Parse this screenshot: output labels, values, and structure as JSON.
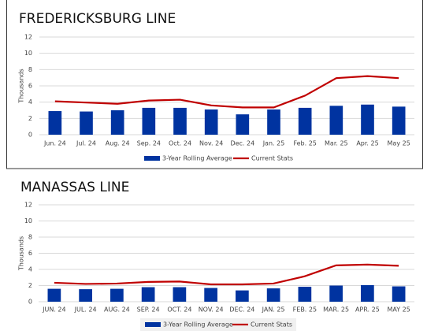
{
  "chart_data": [
    {
      "type": "combo",
      "title": "FREDERICKSBURG LINE",
      "y_label": "Thousands",
      "categories": [
        "Jun. 24",
        "Jul. 24",
        "Aug. 24",
        "Sep. 24",
        "Oct. 24",
        "Nov. 24",
        "Dec. 24",
        "Jan. 25",
        "Feb. 25",
        "Mar. 25",
        "Apr. 25",
        "May 25"
      ],
      "series": [
        {
          "name": "3-Year Rolling Average",
          "type": "bar",
          "color": "#0033a0",
          "values": [
            2.9,
            2.85,
            3.0,
            3.3,
            3.3,
            3.1,
            2.5,
            3.1,
            3.3,
            3.55,
            3.7,
            3.45
          ]
        },
        {
          "name": "Current Stats",
          "type": "line",
          "color": "#c00000",
          "values": [
            4.1,
            3.95,
            3.8,
            4.2,
            4.3,
            3.6,
            3.35,
            3.35,
            4.8,
            6.95,
            7.2,
            6.95
          ]
        }
      ],
      "ylim": [
        0,
        12
      ],
      "yticks": [
        0,
        2,
        4,
        6,
        8,
        10,
        12
      ],
      "grid": true
    },
    {
      "type": "combo",
      "title": "MANASSAS LINE",
      "y_label": "Thousands",
      "categories": [
        "JUN. 24",
        "JUL. 24",
        "AUG. 24",
        "SEP. 24",
        "OCT. 24",
        "NOV. 24",
        "DEC. 24",
        "JAN. 25",
        "FEB. 25",
        "MAR. 25",
        "APR. 25",
        "MAY 25"
      ],
      "series": [
        {
          "name": "3-Year Rolling Average",
          "type": "bar",
          "color": "#0033a0",
          "values": [
            1.6,
            1.55,
            1.6,
            1.8,
            1.8,
            1.7,
            1.4,
            1.65,
            1.85,
            2.0,
            2.05,
            1.9
          ]
        },
        {
          "name": "Current Stats",
          "type": "line",
          "color": "#c00000",
          "values": [
            2.35,
            2.2,
            2.25,
            2.45,
            2.5,
            2.15,
            2.15,
            2.25,
            3.15,
            4.5,
            4.6,
            4.45
          ]
        }
      ],
      "ylim": [
        0,
        12
      ],
      "yticks": [
        0,
        2,
        4,
        6,
        8,
        10,
        12
      ],
      "grid": true
    }
  ]
}
